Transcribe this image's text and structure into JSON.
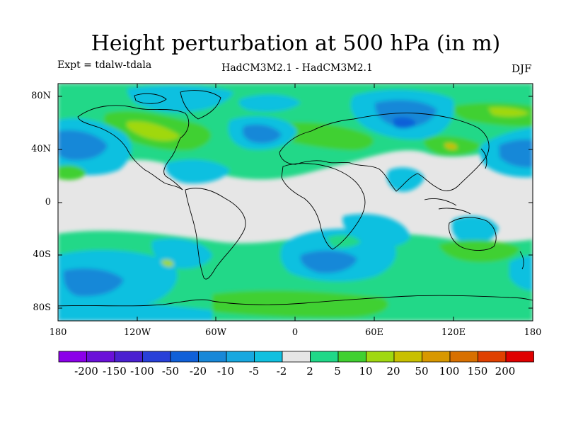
{
  "title": "Height perturbation at 500 hPa (in m)",
  "experiment": "Expt = tdalw-tdala",
  "models": "HadCM3M2.1 - HadCM3M2.1",
  "season": "DJF",
  "lat_ticks": [
    "80N",
    "40N",
    "0",
    "40S",
    "80S"
  ],
  "lon_ticks": [
    "180",
    "120W",
    "60W",
    "0",
    "60E",
    "120E",
    "180"
  ],
  "colorbar": {
    "labels": [
      "-200",
      "-150",
      "-100",
      "-50",
      "-20",
      "-10",
      "-5",
      "-2",
      "2",
      "5",
      "10",
      "20",
      "50",
      "100",
      "150",
      "200"
    ],
    "colors": [
      "#8b00e8",
      "#6a10d8",
      "#4a20d0",
      "#2840d8",
      "#1060d8",
      "#1888d8",
      "#18a8e0",
      "#10c0e0",
      "#e6e6e6",
      "#20d888",
      "#40d030",
      "#a0d810",
      "#c8c000",
      "#d89800",
      "#d87000",
      "#e04000",
      "#e00000"
    ]
  }
}
